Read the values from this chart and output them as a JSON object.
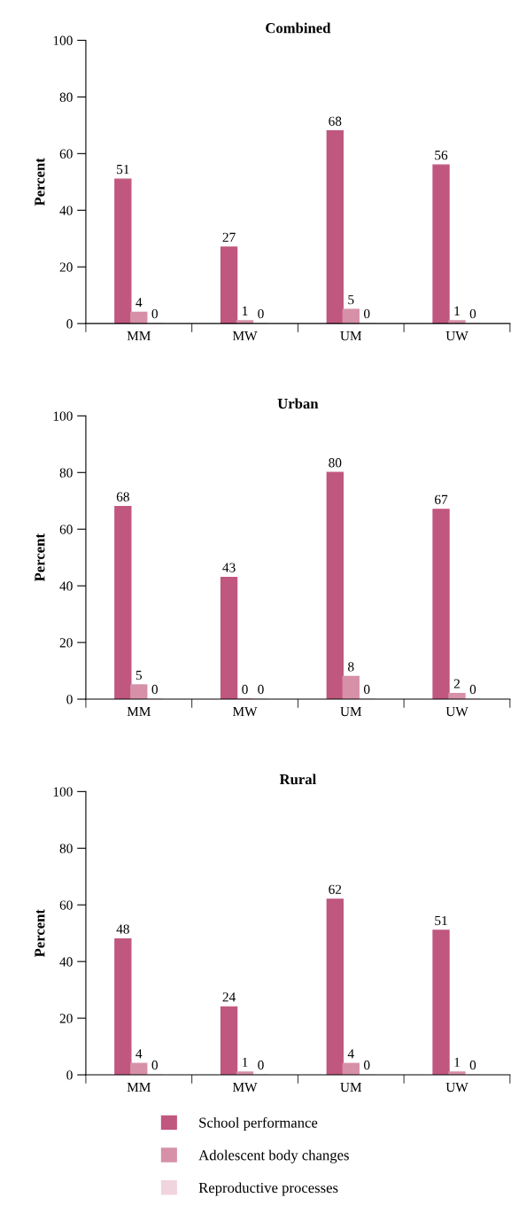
{
  "chart_data": [
    {
      "type": "bar",
      "title": "Combined",
      "ylabel": "Percent",
      "categories": [
        "MM",
        "MW",
        "UM",
        "UW"
      ],
      "ylim": [
        0,
        100
      ],
      "yticks": [
        0,
        20,
        40,
        60,
        80,
        100
      ],
      "data_labels": true,
      "grid": false,
      "series": [
        {
          "color": "#c0577f",
          "values": [
            51,
            27,
            68,
            56
          ]
        },
        {
          "color": "#d690a8",
          "values": [
            4,
            1,
            5,
            1
          ]
        },
        {
          "color": "#f0d5de",
          "values": [
            0,
            0,
            0,
            0
          ]
        }
      ]
    },
    {
      "type": "bar",
      "title": "Urban",
      "ylabel": "Percent",
      "categories": [
        "MM",
        "MW",
        "UM",
        "UW"
      ],
      "ylim": [
        0,
        100
      ],
      "yticks": [
        0,
        20,
        40,
        60,
        80,
        100
      ],
      "data_labels": true,
      "grid": false,
      "series": [
        {
          "color": "#c0577f",
          "values": [
            68,
            43,
            80,
            67
          ]
        },
        {
          "color": "#d690a8",
          "values": [
            5,
            0,
            8,
            2
          ]
        },
        {
          "color": "#f0d5de",
          "values": [
            0,
            0,
            0,
            0
          ]
        }
      ]
    },
    {
      "type": "bar",
      "title": "Rural",
      "ylabel": "Percent",
      "categories": [
        "MM",
        "MW",
        "UM",
        "UW"
      ],
      "ylim": [
        0,
        100
      ],
      "yticks": [
        0,
        20,
        40,
        60,
        80,
        100
      ],
      "data_labels": true,
      "grid": false,
      "legend": "bottom",
      "series": [
        {
          "name": "School performance",
          "color": "#c0577f",
          "values": [
            48,
            24,
            62,
            51
          ]
        },
        {
          "name": "Adolescent body changes",
          "color": "#d690a8",
          "values": [
            4,
            1,
            4,
            1
          ]
        },
        {
          "name": "Reproductive processes",
          "color": "#f0d5de",
          "values": [
            0,
            0,
            0,
            0
          ]
        }
      ]
    }
  ]
}
